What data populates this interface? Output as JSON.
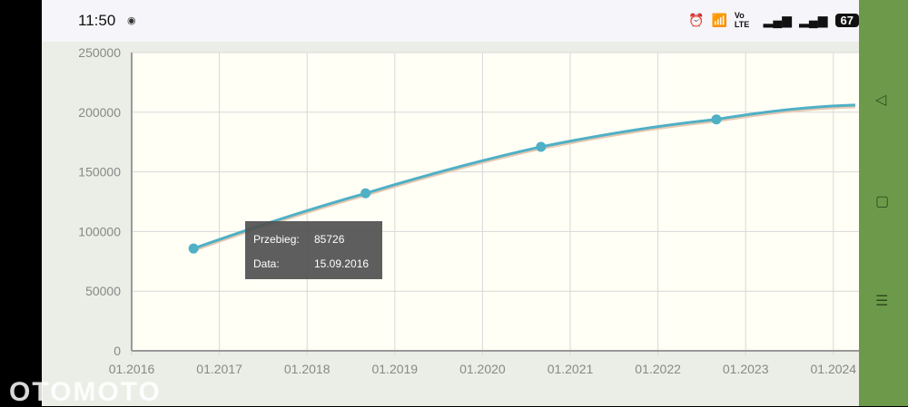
{
  "status_bar": {
    "time": "11:50",
    "battery": "67",
    "network": "Vo LTE"
  },
  "tooltip": {
    "mileage_label": "Przebieg:",
    "mileage_value": "85726",
    "date_label": "Data:",
    "date_value": "15.09.2016"
  },
  "watermark": "OTOMOTO",
  "chart_data": {
    "type": "line",
    "x_ticks": [
      "01.2016",
      "01.2017",
      "01.2018",
      "01.2019",
      "01.2020",
      "01.2021",
      "01.2022",
      "01.2023",
      "01.2024"
    ],
    "y_ticks": [
      "0",
      "50000",
      "100000",
      "150000",
      "200000",
      "250000"
    ],
    "ylim": [
      0,
      250000
    ],
    "grid": true,
    "color": "#4fb0c6",
    "points": [
      {
        "date": "15.09.2016",
        "value": 85726
      },
      {
        "date": "09.2018",
        "value": 132000
      },
      {
        "date": "09.2020",
        "value": 171000
      },
      {
        "date": "09.2022",
        "value": 194000
      }
    ],
    "trend_end": {
      "date": "04.2024",
      "value": 206000
    }
  }
}
